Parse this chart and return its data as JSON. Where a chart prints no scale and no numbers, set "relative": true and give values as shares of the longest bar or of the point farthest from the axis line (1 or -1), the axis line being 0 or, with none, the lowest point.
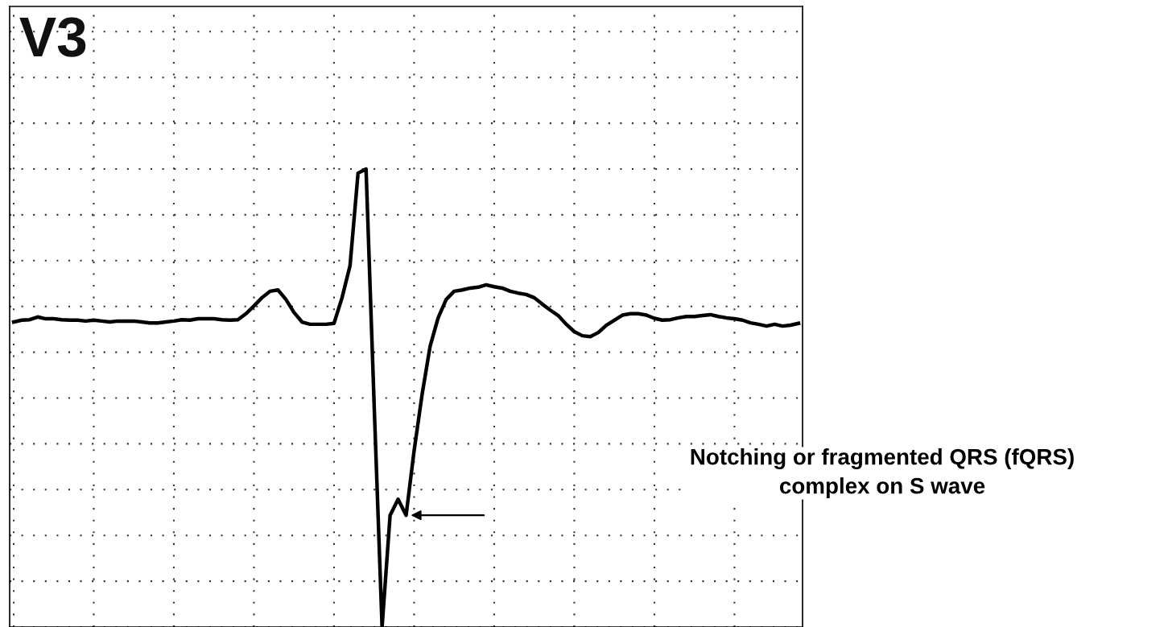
{
  "chart_data": {
    "type": "line",
    "title": "V3",
    "relative": true,
    "grid": true,
    "categories": [
      null,
      null,
      null,
      null,
      null,
      null,
      null,
      null,
      null,
      null,
      null,
      null,
      null,
      null,
      null,
      null,
      null,
      null,
      null,
      null,
      null,
      null,
      null,
      null,
      null,
      null,
      null,
      null,
      null,
      null,
      null,
      null,
      null,
      null,
      null,
      null,
      null,
      null,
      null,
      null,
      null,
      null,
      null,
      null,
      null,
      null,
      null,
      null,
      null,
      null,
      null,
      null,
      null,
      null,
      null,
      null,
      null,
      null,
      null,
      null,
      null,
      null,
      null,
      null,
      null,
      null,
      null,
      null,
      null,
      null,
      null,
      null,
      null,
      null,
      null,
      null,
      null,
      null,
      null,
      null,
      null,
      null,
      null,
      null,
      null,
      null,
      null,
      null,
      null,
      null,
      null,
      null,
      null,
      null,
      null,
      null,
      null,
      null,
      null
    ],
    "series": [
      {
        "color": "#000000",
        "values": [
          0.666,
          0.67,
          0.671,
          0.677,
          0.673,
          0.673,
          0.671,
          0.67,
          0.67,
          0.668,
          0.67,
          0.668,
          0.666,
          0.668,
          0.668,
          0.668,
          0.666,
          0.664,
          0.664,
          0.666,
          0.668,
          0.671,
          0.67,
          0.673,
          0.673,
          0.673,
          0.671,
          0.67,
          0.671,
          0.684,
          0.701,
          0.719,
          0.733,
          0.736,
          0.715,
          0.687,
          0.666,
          0.661,
          0.661,
          0.661,
          0.663,
          0.719,
          0.789,
          0.991,
          1,
          0.49,
          0,
          0.244,
          0.279,
          0.244,
          0.385,
          0.508,
          0.613,
          0.675,
          0.715,
          0.733,
          0.736,
          0.74,
          0.742,
          0.747,
          0.743,
          0.74,
          0.733,
          0.729,
          0.726,
          0.719,
          0.705,
          0.692,
          0.68,
          0.661,
          0.645,
          0.636,
          0.634,
          0.643,
          0.659,
          0.67,
          0.681,
          0.684,
          0.684,
          0.681,
          0.674,
          0.67,
          0.671,
          0.675,
          0.678,
          0.678,
          0.68,
          0.682,
          0.678,
          0.675,
          0.673,
          0.67,
          0.664,
          0.661,
          0.657,
          0.661,
          0.657,
          0.659,
          0.663
        ]
      }
    ],
    "annotations": [
      "Notching or fragmented QRS (fQRS)\ncomplex on S wave"
    ]
  }
}
